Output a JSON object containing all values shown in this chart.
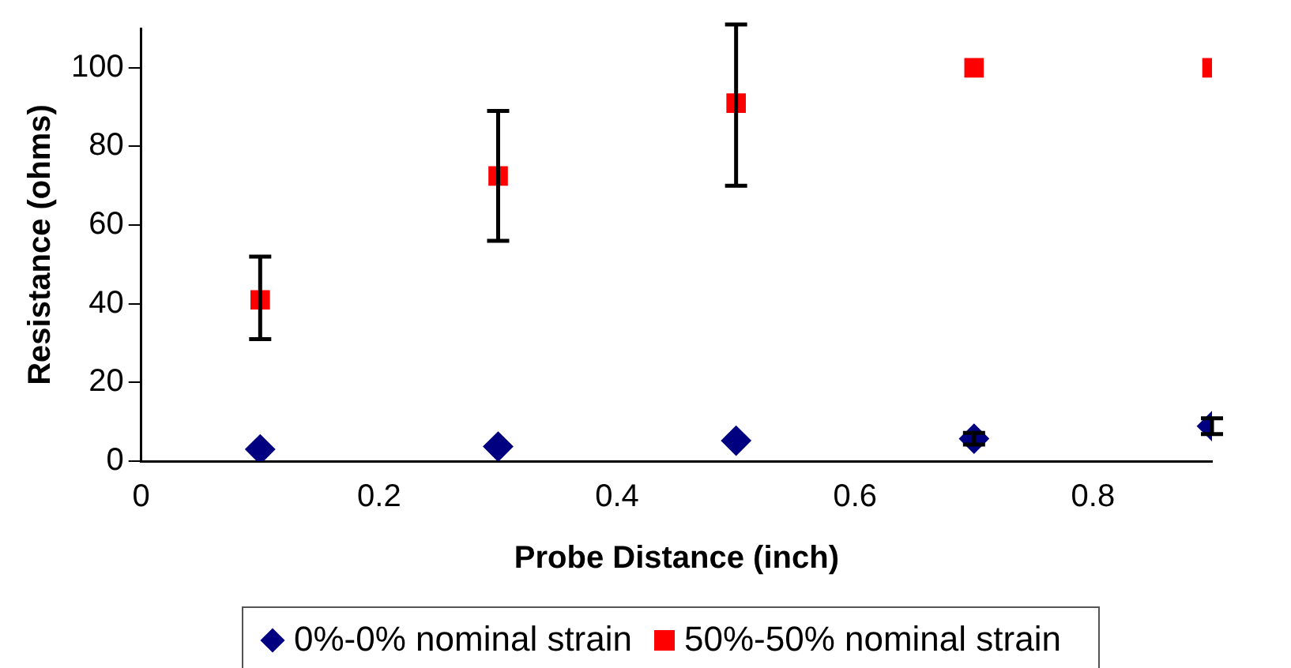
{
  "chart_data": {
    "type": "scatter",
    "xlabel": "Probe Distance (inch)",
    "ylabel": "Resistance (ohms)",
    "xlim": [
      0,
      0.9
    ],
    "xticks": [
      0,
      0.2,
      0.4,
      0.6,
      0.8
    ],
    "ylim": [
      0,
      110
    ],
    "yticks": [
      0,
      20,
      40,
      60,
      80,
      100
    ],
    "grid": false,
    "legend": "bottom",
    "series": [
      {
        "name": "0%-0% nominal strain",
        "color": "#000080",
        "marker": "diamond",
        "x": [
          0.1,
          0.3,
          0.5,
          0.7,
          0.9
        ],
        "values": [
          3,
          3.7,
          5.2,
          5.7,
          8.9
        ],
        "errors": [
          null,
          null,
          null,
          1.5,
          2
        ]
      },
      {
        "name": "50%-50% nominal strain",
        "color": "#ff0000",
        "marker": "square",
        "x": [
          0.1,
          0.3,
          0.5,
          0.7,
          0.9
        ],
        "values": [
          41,
          72.5,
          91,
          100,
          100
        ],
        "errors": [
          [
            31,
            52
          ],
          [
            56,
            89
          ],
          [
            70,
            111
          ],
          null,
          null
        ]
      }
    ]
  }
}
